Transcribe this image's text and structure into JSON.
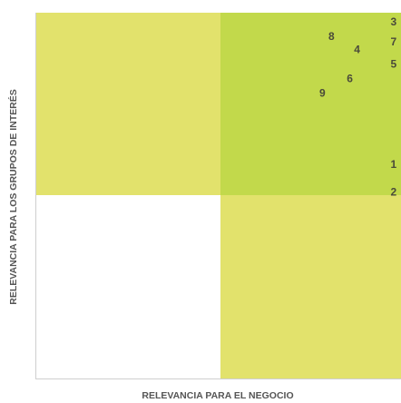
{
  "chart_data": {
    "type": "scatter",
    "xlabel": "RELEVANCIA PARA EL NEGOCIO",
    "ylabel": "RELEVANCIA PARA LOS GRUPOS DE INTERÉS",
    "grid": false,
    "quadrant_colors": {
      "bottom_left": "#ffffff",
      "bottom_right": "#e2e26c",
      "top_left": "#e2e26c",
      "top_right": "#c2d94b"
    },
    "point_color": "#4a4a3a",
    "axis_color": "#cfcfcf",
    "points": [
      {
        "label": "1",
        "x": 0.98,
        "y": 0.585
      },
      {
        "label": "2",
        "x": 0.98,
        "y": 0.51
      },
      {
        "label": "3",
        "x": 0.98,
        "y": 0.975
      },
      {
        "label": "4",
        "x": 0.88,
        "y": 0.9
      },
      {
        "label": "5",
        "x": 0.98,
        "y": 0.86
      },
      {
        "label": "6",
        "x": 0.86,
        "y": 0.82
      },
      {
        "label": "7",
        "x": 0.98,
        "y": 0.92
      },
      {
        "label": "8",
        "x": 0.81,
        "y": 0.935
      },
      {
        "label": "9",
        "x": 0.785,
        "y": 0.78
      }
    ]
  }
}
